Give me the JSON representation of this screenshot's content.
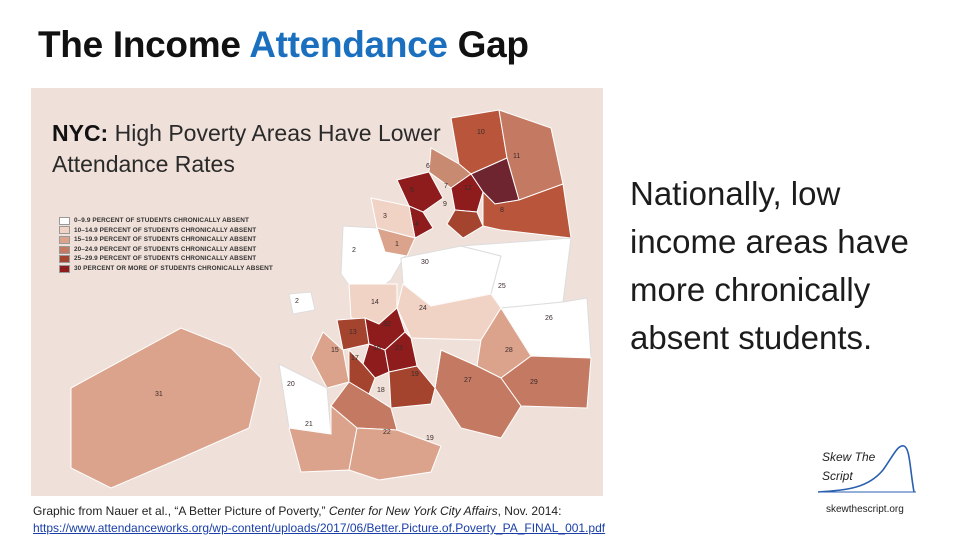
{
  "title": {
    "part1": "The Income ",
    "accent": "Attendance",
    "part2": " Gap"
  },
  "map": {
    "heading_bold": "NYC:",
    "heading_rest": " High Poverty Areas Have Lower Attendance Rates",
    "legend": [
      {
        "label": "0–9.9 PERCENT OF STUDENTS CHRONICALLY ABSENT",
        "color": "#ffffff"
      },
      {
        "label": "10–14.9 PERCENT OF STUDENTS CHRONICALLY ABSENT",
        "color": "#f1d3c5"
      },
      {
        "label": "15–19.9 PERCENT OF STUDENTS CHRONICALLY ABSENT",
        "color": "#dba38c"
      },
      {
        "label": "20–24.9 PERCENT OF STUDENTS CHRONICALLY ABSENT",
        "color": "#c47a62"
      },
      {
        "label": "25–29.9 PERCENT OF STUDENTS CHRONICALLY ABSENT",
        "color": "#a4442f"
      },
      {
        "label": "30 PERCENT OR MORE OF STUDENTS CHRONICALLY ABSENT",
        "color": "#8e1c1c"
      }
    ],
    "district_labels": [
      "10",
      "11",
      "6",
      "5",
      "7",
      "12",
      "9",
      "8",
      "3",
      "4",
      "1",
      "2",
      "30",
      "25",
      "26",
      "24",
      "14",
      "2",
      "13",
      "32",
      "16",
      "23",
      "15",
      "17",
      "19",
      "20",
      "18",
      "27",
      "28",
      "29",
      "31",
      "21",
      "22",
      "19"
    ]
  },
  "side_text": "Nationally, low income areas have more chronically absent students.",
  "credit": {
    "prefix": "Graphic from Nauer et al., “A Better Picture of Poverty,” ",
    "publication": "Center for New York City Affairs",
    "suffix": ", Nov. 2014:",
    "url": "https://www.attendanceworks.org/wp-content/uploads/2017/06/Better.Picture.of.Poverty_PA_FINAL_001.pdf"
  },
  "logo": {
    "line1": "Skew The",
    "line2": "Script",
    "site": "skewthescript.org"
  }
}
